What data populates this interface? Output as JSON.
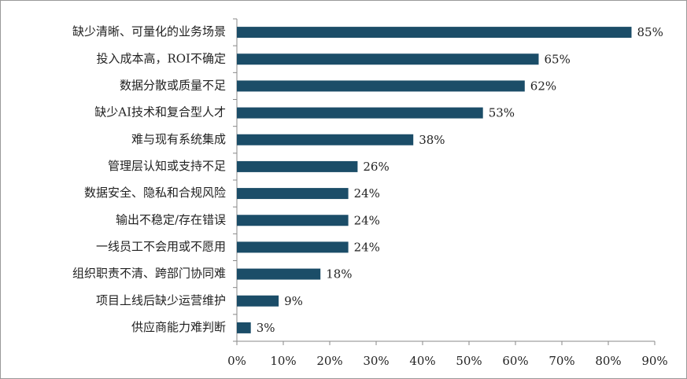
{
  "chart_data": {
    "type": "bar",
    "orientation": "horizontal",
    "categories": [
      "缺少清晰、可量化的业务场景",
      "投入成本高，ROI不确定",
      "数据分散或质量不足",
      "缺少AI技术和复合型人才",
      "难与现有系统集成",
      "管理层认知或支持不足",
      "数据安全、隐私和合规风险",
      "输出不稳定/存在错误",
      "一线员工不会用或不愿用",
      "组织职责不清、跨部门协同难",
      "项目上线后缺少运营维护",
      "供应商能力难判断"
    ],
    "values": [
      85,
      65,
      62,
      53,
      38,
      26,
      24,
      24,
      24,
      18,
      9,
      3
    ],
    "value_labels": [
      "85%",
      "65%",
      "62%",
      "53%",
      "38%",
      "26%",
      "24%",
      "24%",
      "24%",
      "18%",
      "9%",
      "3%"
    ],
    "color": "#1b4d68",
    "xlim": [
      0,
      90
    ],
    "xticks": [
      {
        "value": 0,
        "label": "0%"
      },
      {
        "value": 10,
        "label": "10%"
      },
      {
        "value": 20,
        "label": "20%"
      },
      {
        "value": 30,
        "label": "30%"
      },
      {
        "value": 40,
        "label": "40%"
      },
      {
        "value": 50,
        "label": "50%"
      },
      {
        "value": 60,
        "label": "60%"
      },
      {
        "value": 70,
        "label": "70%"
      },
      {
        "value": 80,
        "label": "80%"
      },
      {
        "value": 90,
        "label": "90%"
      }
    ],
    "grid": false
  }
}
